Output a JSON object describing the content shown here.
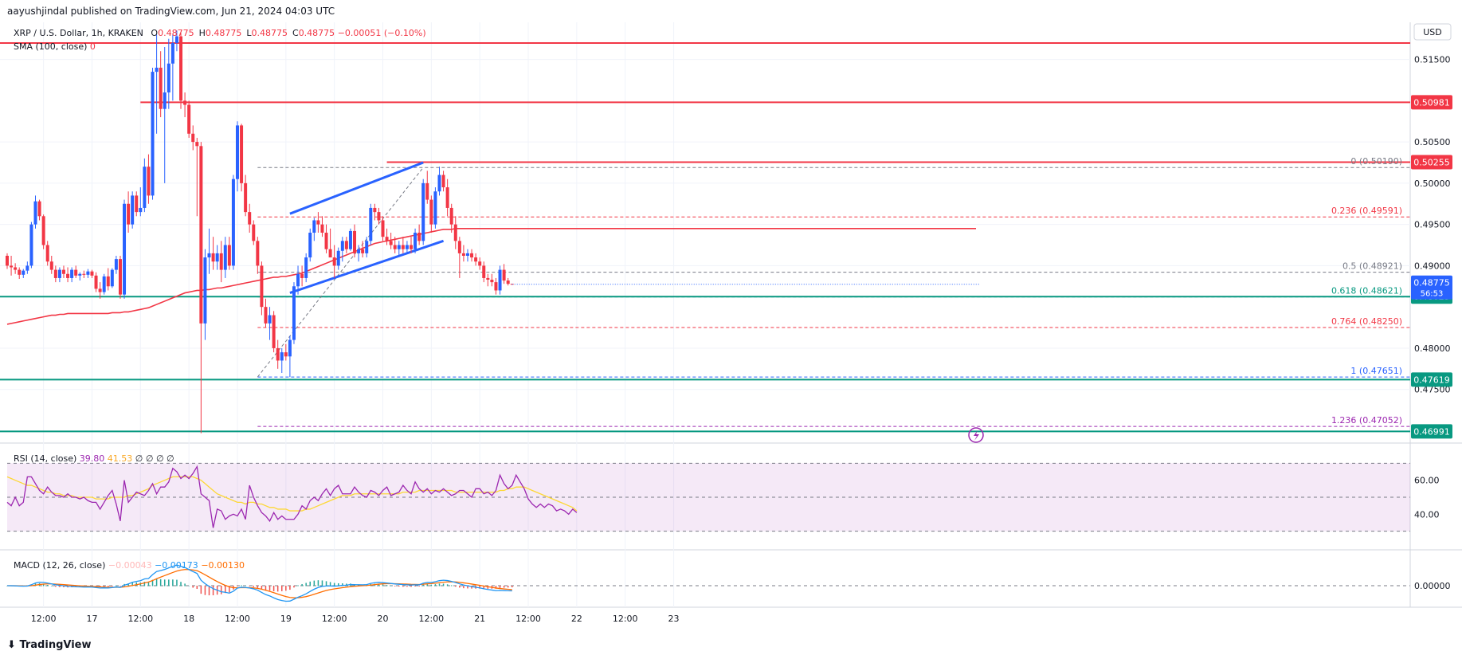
{
  "header": {
    "publisher": "aayushjindal published on TradingView.com, Jun 21, 2024 04:03 UTC",
    "symbol": "XRP / U.S. Dollar, 1h, KRAKEN",
    "ohlc": [
      {
        "k": "O",
        "v": "0.48775"
      },
      {
        "k": "H",
        "v": "0.48775"
      },
      {
        "k": "L",
        "v": "0.48775"
      },
      {
        "k": "C",
        "v": "0.48775"
      }
    ],
    "change": "−0.00051 (−0.10%)",
    "sma_label": "SMA (100, close)",
    "sma_value": "0"
  },
  "price_axis": {
    "currency": "USD",
    "current_price": "0.48775",
    "countdown": "56:53",
    "ticks": [
      "0.51500",
      "0.50500",
      "0.50000",
      "0.49500",
      "0.49000",
      "0.48000",
      "0.47500"
    ]
  },
  "levels": [
    {
      "value": 0.50981,
      "label": "0.50981",
      "color": "#f23645"
    },
    {
      "value": 0.50255,
      "label": "0.50255",
      "color": "#f23645"
    },
    {
      "value": 0.48625,
      "label": "0.48625",
      "color": "#089981"
    },
    {
      "value": 0.47619,
      "label": "0.47619",
      "color": "#089981"
    },
    {
      "value": 0.46991,
      "label": "0.46991",
      "color": "#089981"
    }
  ],
  "fib": [
    {
      "ratio": "0",
      "value": 0.5019,
      "label": "0 (0.50190)",
      "color": "#787b86"
    },
    {
      "ratio": "0.236",
      "value": 0.49591,
      "label": "0.236 (0.49591)",
      "color": "#f23645"
    },
    {
      "ratio": "0.5",
      "value": 0.48921,
      "label": "0.5 (0.48921)",
      "color": "#787b86"
    },
    {
      "ratio": "0.618",
      "value": 0.48621,
      "label": "0.618 (0.48621)",
      "color": "#089981"
    },
    {
      "ratio": "0.764",
      "value": 0.4825,
      "label": "0.764 (0.48250)",
      "color": "#f23645"
    },
    {
      "ratio": "1",
      "value": 0.47651,
      "label": "1 (0.47651)",
      "color": "#2962ff"
    },
    {
      "ratio": "1.236",
      "value": 0.47052,
      "label": "1.236 (0.47052)",
      "color": "#9c27b0"
    }
  ],
  "rsi": {
    "label": "RSI (14, close)",
    "value": "39.80",
    "ma_value": "41.53",
    "extras": [
      "∅",
      "∅",
      "∅",
      "∅"
    ],
    "ticks": [
      "60.00",
      "40.00"
    ],
    "values": [
      47,
      45,
      50,
      45,
      47,
      62,
      62,
      58,
      54,
      52,
      56,
      53,
      51,
      51,
      50,
      52,
      50,
      50,
      49,
      50,
      48,
      47,
      47,
      43,
      47,
      51,
      54,
      46,
      36,
      60,
      47,
      50,
      53,
      52,
      51,
      54,
      58,
      52,
      56,
      56,
      59,
      67,
      65,
      61,
      63,
      61,
      64,
      68,
      52,
      50,
      48,
      32,
      43,
      42,
      37,
      39,
      40,
      39,
      43,
      37,
      57,
      50,
      45,
      41,
      39,
      36,
      41,
      37,
      39,
      37,
      37,
      37,
      40,
      45,
      43,
      48,
      50,
      48,
      52,
      55,
      51,
      55,
      57,
      52,
      52,
      52,
      56,
      53,
      51,
      50,
      54,
      53,
      51,
      54,
      56,
      51,
      52,
      53,
      57,
      54,
      52,
      59,
      55,
      53,
      55,
      52,
      54,
      53,
      55,
      53,
      51,
      52,
      54,
      54,
      52,
      50,
      55,
      55,
      52,
      53,
      51,
      54,
      63,
      58,
      55,
      57,
      63,
      59,
      55,
      49,
      46,
      44,
      46,
      44,
      46,
      45,
      42,
      43,
      42,
      40,
      43,
      41
    ],
    "ma_values": [
      62,
      61,
      60,
      59,
      58,
      57,
      57,
      56,
      55,
      54,
      53,
      53,
      52,
      52,
      51,
      51,
      51,
      50,
      50,
      50,
      50,
      50,
      49,
      49,
      49,
      49,
      50,
      50,
      50,
      50,
      51,
      51,
      52,
      53,
      54,
      55,
      57,
      58,
      59,
      60,
      61,
      62,
      62,
      62,
      62,
      62,
      62,
      61,
      60,
      58,
      56,
      54,
      52,
      51,
      50,
      49,
      48,
      47,
      47,
      46,
      47,
      47,
      46,
      46,
      45,
      44,
      44,
      43,
      43,
      43,
      42,
      42,
      42,
      42,
      43,
      43,
      44,
      45,
      46,
      47,
      48,
      49,
      50,
      51,
      51,
      51,
      52,
      52,
      52,
      52,
      52,
      52,
      52,
      52,
      52,
      52,
      52,
      52,
      53,
      53,
      53,
      53,
      54,
      54,
      54,
      54,
      54,
      54,
      54,
      54,
      54,
      53,
      53,
      53,
      53,
      53,
      53,
      53,
      53,
      53,
      53,
      53,
      54,
      54,
      55,
      55,
      56,
      56,
      56,
      55,
      54,
      53,
      52,
      51,
      50,
      49,
      48,
      47,
      46,
      45,
      44,
      42
    ]
  },
  "macd": {
    "label": "MACD (12, 26, close)",
    "hist_value": "−0.00043",
    "macd_value": "−0.00173",
    "signal_value": "−0.00130",
    "ticks": [
      "0.00000"
    ]
  },
  "time_axis": {
    "labels": [
      "12:00",
      "17",
      "12:00",
      "18",
      "12:00",
      "19",
      "12:00",
      "20",
      "12:00",
      "21",
      "12:00",
      "22",
      "12:00",
      "23"
    ]
  },
  "branding": {
    "name": "TradingView"
  },
  "colors": {
    "up": "#2962ff",
    "down": "#f23645",
    "sma": "#f23645",
    "rsi": "#9c27b0",
    "rsi_ma": "#fdd835",
    "macd": "#2196f3",
    "signal": "#ff6d00",
    "channel": "#2962ff",
    "hist_pos": "#26a69a",
    "hist_neg": "#ef5350"
  },
  "chart_data": {
    "type": "candlestick",
    "title": "XRP / U.S. Dollar, 1h, KRAKEN",
    "ylabel": "USD",
    "ylim": [
      0.4685,
      0.5195
    ],
    "interval": "1h",
    "start": "2024-06-16 03:00",
    "candles": [
      [
        0.4912,
        0.4915,
        0.4896,
        0.49
      ],
      [
        0.49,
        0.4912,
        0.4888,
        0.4898
      ],
      [
        0.4898,
        0.4903,
        0.489,
        0.4895
      ],
      [
        0.4895,
        0.4898,
        0.4884,
        0.4889
      ],
      [
        0.4889,
        0.4896,
        0.4885,
        0.4894
      ],
      [
        0.4894,
        0.4905,
        0.489,
        0.49
      ],
      [
        0.49,
        0.4953,
        0.4897,
        0.495
      ],
      [
        0.495,
        0.4985,
        0.4945,
        0.4978
      ],
      [
        0.4978,
        0.498,
        0.4955,
        0.496
      ],
      [
        0.496,
        0.4962,
        0.492,
        0.4925
      ],
      [
        0.4925,
        0.493,
        0.49,
        0.4905
      ],
      [
        0.4905,
        0.4912,
        0.489,
        0.4895
      ],
      [
        0.4895,
        0.49,
        0.488,
        0.4885
      ],
      [
        0.4885,
        0.4898,
        0.488,
        0.4895
      ],
      [
        0.4895,
        0.49,
        0.4885,
        0.489
      ],
      [
        0.489,
        0.4898,
        0.488,
        0.4885
      ],
      [
        0.4885,
        0.4898,
        0.488,
        0.4895
      ],
      [
        0.4895,
        0.49,
        0.4885,
        0.4888
      ],
      [
        0.4888,
        0.4892,
        0.4882,
        0.489
      ],
      [
        0.489,
        0.4894,
        0.4885,
        0.4889
      ],
      [
        0.4889,
        0.4896,
        0.4885,
        0.4893
      ],
      [
        0.4893,
        0.4895,
        0.4885,
        0.4888
      ],
      [
        0.4888,
        0.4892,
        0.4868,
        0.4872
      ],
      [
        0.4872,
        0.488,
        0.486,
        0.4868
      ],
      [
        0.4868,
        0.489,
        0.4865,
        0.4887
      ],
      [
        0.4887,
        0.4897,
        0.487,
        0.4875
      ],
      [
        0.4875,
        0.4897,
        0.4873,
        0.4895
      ],
      [
        0.4895,
        0.4912,
        0.489,
        0.4908
      ],
      [
        0.4908,
        0.4912,
        0.486,
        0.4865
      ],
      [
        0.4865,
        0.498,
        0.486,
        0.4975
      ],
      [
        0.4975,
        0.499,
        0.494,
        0.495
      ],
      [
        0.495,
        0.499,
        0.4945,
        0.4985
      ],
      [
        0.4985,
        0.499,
        0.496,
        0.4965
      ],
      [
        0.4965,
        0.4995,
        0.496,
        0.497
      ],
      [
        0.497,
        0.503,
        0.4965,
        0.502
      ],
      [
        0.502,
        0.5035,
        0.4975,
        0.4985
      ],
      [
        0.4985,
        0.514,
        0.498,
        0.5135
      ],
      [
        0.5135,
        0.518,
        0.506,
        0.514
      ],
      [
        0.514,
        0.516,
        0.508,
        0.509
      ],
      [
        0.509,
        0.5165,
        0.5,
        0.511
      ],
      [
        0.511,
        0.5175,
        0.509,
        0.5145
      ],
      [
        0.5145,
        0.518,
        0.51,
        0.517
      ],
      [
        0.517,
        0.5185,
        0.516,
        0.5178
      ],
      [
        0.5178,
        0.5182,
        0.509,
        0.51
      ],
      [
        0.51,
        0.511,
        0.508,
        0.5095
      ],
      [
        0.5095,
        0.51,
        0.5055,
        0.506
      ],
      [
        0.506,
        0.507,
        0.504,
        0.505
      ],
      [
        0.505,
        0.5055,
        0.496,
        0.5045
      ],
      [
        0.5045,
        0.505,
        0.4697,
        0.483
      ],
      [
        0.483,
        0.492,
        0.481,
        0.491
      ],
      [
        0.491,
        0.4945,
        0.489,
        0.4915
      ],
      [
        0.4915,
        0.4935,
        0.4895,
        0.4905
      ],
      [
        0.4905,
        0.4925,
        0.4895,
        0.4915
      ],
      [
        0.4915,
        0.493,
        0.488,
        0.4895
      ],
      [
        0.4895,
        0.4935,
        0.4885,
        0.4925
      ],
      [
        0.4925,
        0.4935,
        0.4895,
        0.49
      ],
      [
        0.49,
        0.501,
        0.4895,
        0.5005
      ],
      [
        0.5005,
        0.5075,
        0.499,
        0.507
      ],
      [
        0.507,
        0.5072,
        0.499,
        0.5
      ],
      [
        0.5,
        0.501,
        0.496,
        0.4965
      ],
      [
        0.4965,
        0.4975,
        0.494,
        0.495
      ],
      [
        0.495,
        0.4955,
        0.4925,
        0.493
      ],
      [
        0.493,
        0.4935,
        0.489,
        0.49
      ],
      [
        0.49,
        0.4905,
        0.484,
        0.485
      ],
      [
        0.485,
        0.486,
        0.4825,
        0.483
      ],
      [
        0.483,
        0.485,
        0.481,
        0.484
      ],
      [
        0.484,
        0.4845,
        0.4795,
        0.48
      ],
      [
        0.48,
        0.481,
        0.4775,
        0.4785
      ],
      [
        0.4785,
        0.48,
        0.477,
        0.4795
      ],
      [
        0.4795,
        0.4805,
        0.4785,
        0.479
      ],
      [
        0.479,
        0.4815,
        0.4765,
        0.481
      ],
      [
        0.481,
        0.488,
        0.4805,
        0.4875
      ],
      [
        0.4875,
        0.49,
        0.4865,
        0.489
      ],
      [
        0.489,
        0.49,
        0.4875,
        0.4885
      ],
      [
        0.4885,
        0.4915,
        0.488,
        0.491
      ],
      [
        0.491,
        0.4945,
        0.4905,
        0.494
      ],
      [
        0.494,
        0.4958,
        0.493,
        0.4955
      ],
      [
        0.4955,
        0.4965,
        0.494,
        0.495
      ],
      [
        0.495,
        0.496,
        0.4935,
        0.494
      ],
      [
        0.494,
        0.495,
        0.4915,
        0.492
      ],
      [
        0.492,
        0.4945,
        0.4915,
        0.491
      ],
      [
        0.491,
        0.4925,
        0.4885,
        0.49
      ],
      [
        0.49,
        0.4922,
        0.4895,
        0.4918
      ],
      [
        0.4918,
        0.4935,
        0.4905,
        0.493
      ],
      [
        0.493,
        0.4935,
        0.4915,
        0.492
      ],
      [
        0.492,
        0.4945,
        0.4918,
        0.4942
      ],
      [
        0.4942,
        0.495,
        0.491,
        0.4915
      ],
      [
        0.4915,
        0.4925,
        0.4905,
        0.492
      ],
      [
        0.492,
        0.493,
        0.491,
        0.4915
      ],
      [
        0.4915,
        0.4935,
        0.491,
        0.493
      ],
      [
        0.493,
        0.4975,
        0.4925,
        0.497
      ],
      [
        0.497,
        0.4975,
        0.4955,
        0.4965
      ],
      [
        0.4965,
        0.497,
        0.495,
        0.4955
      ],
      [
        0.4955,
        0.496,
        0.493,
        0.4935
      ],
      [
        0.4935,
        0.4945,
        0.4925,
        0.493
      ],
      [
        0.493,
        0.494,
        0.492,
        0.4925
      ],
      [
        0.4925,
        0.4935,
        0.4915,
        0.492
      ],
      [
        0.492,
        0.493,
        0.4912,
        0.4925
      ],
      [
        0.4925,
        0.4935,
        0.4915,
        0.492
      ],
      [
        0.492,
        0.493,
        0.4915,
        0.4925
      ],
      [
        0.4925,
        0.4935,
        0.4915,
        0.492
      ],
      [
        0.492,
        0.4945,
        0.4915,
        0.494
      ],
      [
        0.494,
        0.495,
        0.4925,
        0.493
      ],
      [
        0.493,
        0.5005,
        0.4925,
        0.5
      ],
      [
        0.5,
        0.5015,
        0.4975,
        0.498
      ],
      [
        0.498,
        0.4985,
        0.494,
        0.495
      ],
      [
        0.495,
        0.4995,
        0.4945,
        0.499
      ],
      [
        0.499,
        0.502,
        0.4985,
        0.501
      ],
      [
        0.501,
        0.5015,
        0.499,
        0.4995
      ],
      [
        0.4995,
        0.5005,
        0.496,
        0.497
      ],
      [
        0.497,
        0.4975,
        0.494,
        0.495
      ],
      [
        0.495,
        0.496,
        0.492,
        0.493
      ],
      [
        0.493,
        0.4935,
        0.4885,
        0.4915
      ],
      [
        0.4915,
        0.4925,
        0.4905,
        0.4912
      ],
      [
        0.4912,
        0.492,
        0.4905,
        0.4915
      ],
      [
        0.4915,
        0.492,
        0.4905,
        0.491
      ],
      [
        0.491,
        0.4915,
        0.49,
        0.4905
      ],
      [
        0.4905,
        0.491,
        0.4895,
        0.49
      ],
      [
        0.49,
        0.4905,
        0.488,
        0.4885
      ],
      [
        0.4885,
        0.489,
        0.4875,
        0.4883
      ],
      [
        0.4883,
        0.489,
        0.4875,
        0.488
      ],
      [
        0.488,
        0.4885,
        0.4865,
        0.487
      ],
      [
        0.487,
        0.49,
        0.4865,
        0.4895
      ],
      [
        0.4895,
        0.4902,
        0.4878,
        0.4882
      ],
      [
        0.4882,
        0.4885,
        0.4876,
        0.4878
      ],
      [
        0.4878,
        0.4878,
        0.4877,
        0.4877
      ]
    ],
    "sma100": [
      0.4829,
      0.483,
      0.4831,
      0.4832,
      0.4833,
      0.4834,
      0.4835,
      0.4836,
      0.4837,
      0.4838,
      0.4839,
      0.484,
      0.484,
      0.4841,
      0.4841,
      0.4842,
      0.4842,
      0.4842,
      0.4842,
      0.4842,
      0.4842,
      0.4842,
      0.4842,
      0.4842,
      0.4842,
      0.4842,
      0.4843,
      0.4843,
      0.4843,
      0.4844,
      0.4844,
      0.4845,
      0.4846,
      0.4847,
      0.4848,
      0.4849,
      0.4851,
      0.4853,
      0.4855,
      0.4857,
      0.4859,
      0.4861,
      0.4863,
      0.4865,
      0.4867,
      0.4868,
      0.4869,
      0.487,
      0.487,
      0.4871,
      0.4871,
      0.4872,
      0.4873,
      0.4873,
      0.4874,
      0.4875,
      0.4876,
      0.4877,
      0.4878,
      0.4879,
      0.488,
      0.4881,
      0.4882,
      0.4883,
      0.4884,
      0.4885,
      0.4886,
      0.4886,
      0.4887,
      0.4887,
      0.4888,
      0.4889,
      0.489,
      0.4891,
      0.4893,
      0.4895,
      0.4897,
      0.4899,
      0.4901,
      0.4903,
      0.4905,
      0.4907,
      0.4909,
      0.4911,
      0.4913,
      0.4915,
      0.4917,
      0.4919,
      0.4921,
      0.4923,
      0.4925,
      0.4927,
      0.4928,
      0.4929,
      0.493,
      0.4931,
      0.4932,
      0.4933,
      0.4934,
      0.4935,
      0.4936,
      0.4937,
      0.4938,
      0.4939,
      0.494,
      0.4941,
      0.4942,
      0.4943,
      0.4944,
      0.4944,
      0.4944,
      0.4945,
      0.4945,
      0.4945,
      0.4945,
      0.4945,
      0.4945,
      0.4945,
      0.4945,
      0.4945,
      0.4945,
      0.4945,
      0.4945,
      0.4945,
      0.4945,
      0.4945,
      0.4945,
      0.4945,
      0.4945,
      0.4945,
      0.4945,
      0.4945,
      0.4945,
      0.4945,
      0.4945,
      0.4945,
      0.4945
    ],
    "channel": [
      {
        "from": [
          "2024-06-19 01:00",
          0.4867
        ],
        "to": [
          "2024-06-20 15:00",
          0.493
        ]
      },
      {
        "from": [
          "2024-06-19 01:00",
          0.4963
        ],
        "to": [
          "2024-06-20 10:00",
          0.5025
        ]
      }
    ],
    "fib_anchor": {
      "from": [
        "2024-06-18 17:00",
        0.47651
      ],
      "to": [
        "2024-06-20 10:00",
        0.5019
      ]
    }
  }
}
